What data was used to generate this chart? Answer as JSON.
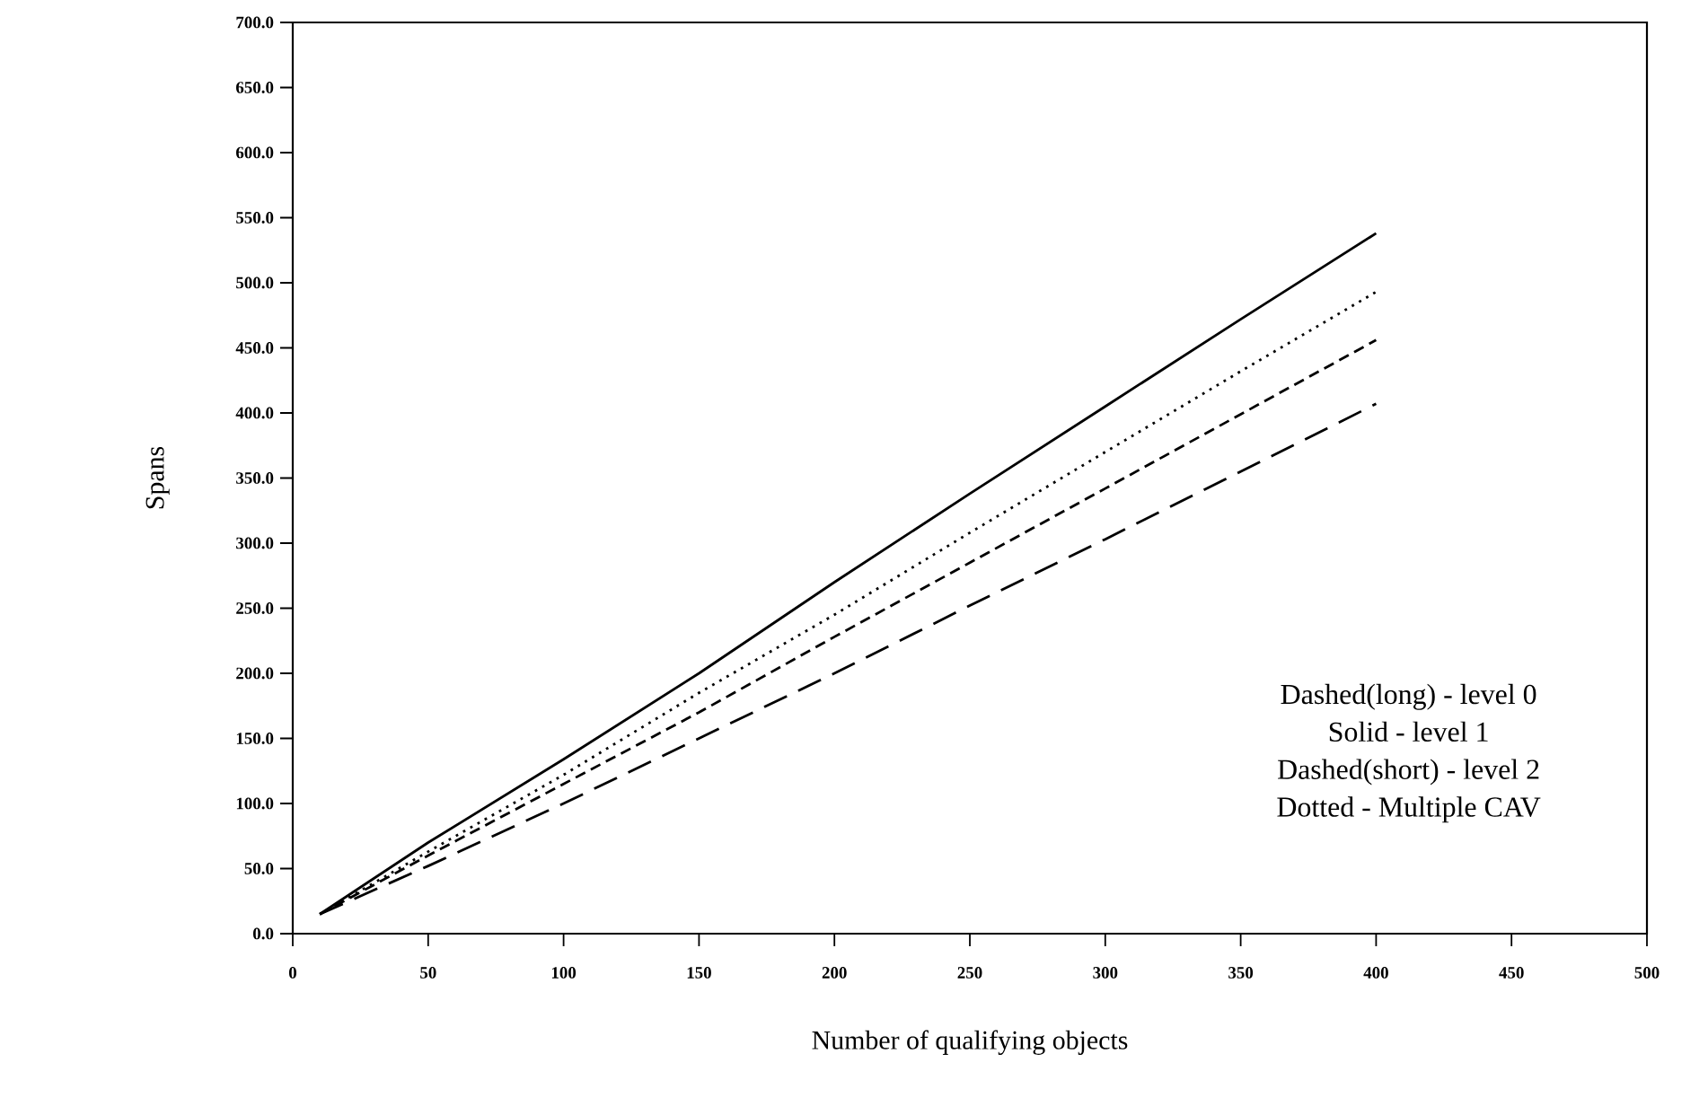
{
  "chart_data": {
    "type": "line",
    "xlabel": "Number of qualifying objects",
    "ylabel": "Spans",
    "x": [
      10,
      50,
      100,
      150,
      200,
      250,
      300,
      350,
      400
    ],
    "series": [
      {
        "color": "#000000",
        "line_style": "dashed",
        "values": [
          15,
          52,
          100,
          150,
          200,
          252,
          303,
          355,
          407
        ]
      },
      {
        "color": "#000000",
        "line_style": "solid",
        "values": [
          15,
          70,
          134,
          200,
          270,
          338,
          405,
          472,
          538
        ]
      },
      {
        "color": "#000000",
        "line_style": "dashed",
        "values": [
          15,
          60,
          115,
          170,
          228,
          285,
          342,
          399,
          456
        ]
      },
      {
        "color": "#000000",
        "line_style": "dotted",
        "values": [
          15,
          63,
          122,
          185,
          245,
          308,
          370,
          432,
          493
        ]
      }
    ],
    "xlim": [
      0,
      500
    ],
    "xticks": [
      0,
      50,
      100,
      150,
      200,
      250,
      300,
      350,
      400,
      450,
      500
    ],
    "ylim": [
      0,
      700
    ],
    "yticks": [
      {
        "value": 0,
        "label": "0.0"
      },
      {
        "value": 50,
        "label": "50.0"
      },
      {
        "value": 100,
        "label": "100.0"
      },
      {
        "value": 150,
        "label": "150.0"
      },
      {
        "value": 200,
        "label": "200.0"
      },
      {
        "value": 250,
        "label": "250.0"
      },
      {
        "value": 300,
        "label": "300.0"
      },
      {
        "value": 350,
        "label": "350.0"
      },
      {
        "value": 400,
        "label": "400.0"
      },
      {
        "value": 450,
        "label": "450.0"
      },
      {
        "value": 500,
        "label": "500.0"
      },
      {
        "value": 550,
        "label": "550.0"
      },
      {
        "value": 600,
        "label": "600.0"
      },
      {
        "value": 650,
        "label": "650.0"
      },
      {
        "value": 700,
        "label": "700.0"
      }
    ],
    "annotations": [
      "Dashed(long) - level 0",
      "Solid - level 1",
      "Dashed(short) - level 2",
      "Dotted - Multiple CAV"
    ],
    "grid": false
  }
}
